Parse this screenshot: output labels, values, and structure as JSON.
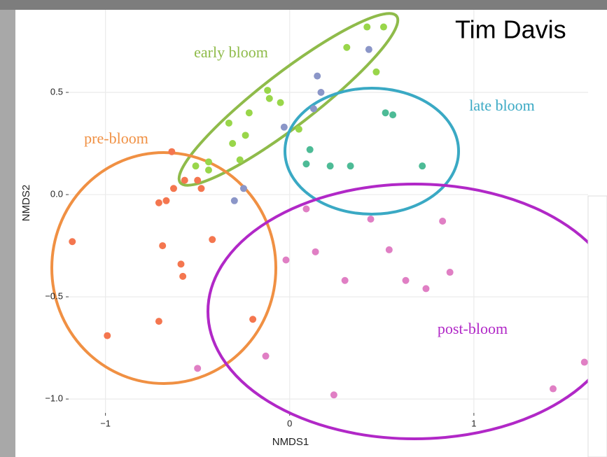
{
  "slide_title": "Tim Davis",
  "chart_data": {
    "type": "scatter",
    "xlabel": "NMDS1",
    "ylabel": "NMDS2",
    "xlim": [
      -1.2,
      1.62
    ],
    "ylim": [
      -1.068,
      0.904
    ],
    "xticks": [
      {
        "value": -1,
        "label": "−1"
      },
      0,
      1
    ],
    "yticks": [
      {
        "value": -1.0,
        "label": "−1.0"
      },
      {
        "value": -0.5,
        "label": "−0.5"
      },
      {
        "value": 0,
        "label": "0.0"
      },
      0.5
    ],
    "grid": true,
    "annotations": [
      {
        "text": "early bloom",
        "color": "#8fbb4a"
      },
      {
        "text": "late bloom",
        "color": "#3aa9c4"
      },
      {
        "text": "pre-bloom",
        "color": "#f09043"
      },
      {
        "text": "post-bloom",
        "color": "#b128c7"
      }
    ],
    "series": [
      {
        "color": "#99d64a",
        "x": [
          0.42,
          0.51,
          0.31,
          0.47,
          -0.12,
          -0.11,
          -0.05,
          -0.22,
          -0.33,
          -0.24,
          0.05,
          -0.31,
          -0.27,
          -0.44,
          -0.51,
          -0.44
        ],
        "values": [
          0.82,
          0.82,
          0.72,
          0.6,
          0.51,
          0.47,
          0.45,
          0.4,
          0.35,
          0.29,
          0.32,
          0.25,
          0.17,
          0.16,
          0.14,
          0.12
        ]
      },
      {
        "color": "#8b96c8",
        "x": [
          0.43,
          0.15,
          0.17,
          0.13,
          -0.03,
          -0.25,
          -0.3
        ],
        "values": [
          0.71,
          0.58,
          0.5,
          0.42,
          0.33,
          0.03,
          -0.03
        ]
      },
      {
        "color": "#4dbb96",
        "x": [
          0.52,
          0.56,
          0.11,
          0.09,
          0.22,
          0.33,
          0.72
        ],
        "values": [
          0.4,
          0.39,
          0.22,
          0.15,
          0.14,
          0.14,
          0.14
        ]
      },
      {
        "color": "#f4764f",
        "x": [
          -0.64,
          -0.63,
          -0.57,
          -0.5,
          -0.48,
          -0.67,
          -0.71,
          -1.18,
          -0.69,
          -0.42,
          -0.59,
          -0.58,
          -0.71,
          -0.2,
          -0.99
        ],
        "values": [
          0.21,
          0.03,
          0.07,
          0.07,
          0.03,
          -0.03,
          -0.04,
          -0.23,
          -0.25,
          -0.22,
          -0.34,
          -0.4,
          -0.62,
          -0.61,
          -0.69
        ]
      },
      {
        "color": "#e07fc4",
        "x": [
          0.09,
          0.44,
          0.83,
          0.54,
          0.14,
          -0.02,
          0.87,
          0.3,
          0.63,
          0.74,
          -0.13,
          -0.5,
          0.24,
          1.43,
          1.6
        ],
        "values": [
          -0.07,
          -0.12,
          -0.13,
          -0.27,
          -0.28,
          -0.32,
          -0.38,
          -0.42,
          -0.42,
          -0.46,
          -0.79,
          -0.85,
          -0.98,
          -0.95,
          -0.82
        ]
      }
    ]
  }
}
